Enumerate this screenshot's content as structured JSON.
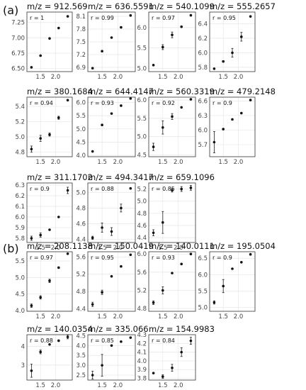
{
  "panel_labels": [
    "(a)",
    "(b)"
  ],
  "chart_data": [
    {
      "type": "scatter",
      "panel": "(a)",
      "title": "m/z = 912.569",
      "r_label": "r = 1",
      "x": [
        1.2,
        1.5,
        1.8,
        2.1,
        2.4
      ],
      "y": [
        6.52,
        6.71,
        6.99,
        7.16,
        7.35
      ],
      "err": [
        0,
        0,
        0,
        0,
        0
      ],
      "xticks": [
        1.5,
        2.0
      ],
      "yticks": [
        6.5,
        6.75,
        7.0,
        7.25
      ],
      "xlim": [
        1.05,
        2.55
      ],
      "ylim": [
        6.45,
        7.42
      ]
    },
    {
      "type": "scatter",
      "panel": "(a)",
      "title": "m/z = 636.5591",
      "r_label": "r = 0.99",
      "x": [
        1.2,
        1.5,
        1.8,
        2.1,
        2.4
      ],
      "y": [
        6.88,
        7.28,
        7.6,
        7.84,
        8.12
      ],
      "err": [
        0,
        0,
        0,
        0,
        0
      ],
      "xticks": [
        1.5,
        2.0
      ],
      "yticks": [
        6.9,
        7.2,
        7.5,
        7.8,
        8.1
      ],
      "xlim": [
        1.05,
        2.55
      ],
      "ylim": [
        6.8,
        8.2
      ]
    },
    {
      "type": "scatter",
      "panel": "(a)",
      "title": "m/z = 540.1099",
      "r_label": "r = 0.97",
      "x": [
        1.2,
        1.5,
        1.8,
        2.1,
        2.4
      ],
      "y": [
        5.08,
        5.52,
        5.82,
        6.02,
        6.3
      ],
      "err": [
        0,
        0.06,
        0.07,
        0,
        0
      ],
      "xticks": [
        1.5,
        2.0
      ],
      "yticks": [
        5.0,
        5.5,
        6.0
      ],
      "xlim": [
        1.05,
        2.55
      ],
      "ylim": [
        4.92,
        6.38
      ]
    },
    {
      "type": "scatter",
      "panel": "(a)",
      "title": "m/z = 555.2657",
      "r_label": "r = 0.95",
      "x": [
        1.2,
        1.5,
        1.8,
        2.1,
        2.4
      ],
      "y": [
        5.78,
        5.88,
        6.0,
        6.22,
        6.5
      ],
      "err": [
        0,
        0.01,
        0.06,
        0.06,
        0
      ],
      "xticks": [
        1.5,
        2.0
      ],
      "yticks": [
        5.8,
        6.0,
        6.2,
        6.4
      ],
      "xlim": [
        1.05,
        2.55
      ],
      "ylim": [
        5.74,
        6.56
      ]
    },
    {
      "type": "scatter",
      "panel": "(a)",
      "title": "m/z = 380.1684",
      "r_label": "r = 0.94",
      "x": [
        1.2,
        1.5,
        1.8,
        2.1,
        2.4
      ],
      "y": [
        4.84,
        4.98,
        5.03,
        5.25,
        5.48
      ],
      "err": [
        0.04,
        0.04,
        0.02,
        0.02,
        0
      ],
      "xticks": [
        1.5,
        2.0
      ],
      "yticks": [
        4.8,
        5.0,
        5.2,
        5.4
      ],
      "xlim": [
        1.05,
        2.55
      ],
      "ylim": [
        4.74,
        5.52
      ]
    },
    {
      "type": "scatter",
      "panel": "(a)",
      "title": "m/z = 644.4147",
      "r_label": "r = 0.93",
      "x": [
        1.2,
        1.5,
        1.8,
        2.1,
        2.4
      ],
      "y": [
        4.15,
        5.15,
        5.58,
        5.88,
        6.15
      ],
      "err": [
        0,
        0,
        0,
        0,
        0
      ],
      "xticks": [
        1.5,
        2.0
      ],
      "yticks": [
        4.0,
        4.5,
        5.0,
        5.5,
        6.0
      ],
      "xlim": [
        1.05,
        2.55
      ],
      "ylim": [
        3.95,
        6.2
      ]
    },
    {
      "type": "scatter",
      "panel": "(a)",
      "title": "m/z = 560.3319",
      "r_label": "r = 0.92",
      "x": [
        1.2,
        1.5,
        1.8,
        2.1,
        2.4
      ],
      "y": [
        4.72,
        5.25,
        5.55,
        5.8,
        6.02
      ],
      "err": [
        0.1,
        0.18,
        0.08,
        0,
        0
      ],
      "xticks": [
        1.5,
        2.0
      ],
      "yticks": [
        4.5,
        5.0,
        5.5,
        6.0
      ],
      "xlim": [
        1.05,
        2.55
      ],
      "ylim": [
        4.45,
        6.08
      ]
    },
    {
      "type": "scatter",
      "panel": "(a)",
      "title": "m/z = 479.2148",
      "r_label": "r = 0.9",
      "x": [
        1.2,
        1.5,
        1.8,
        2.1,
        2.4
      ],
      "y": [
        5.75,
        6.02,
        6.22,
        6.35,
        6.62
      ],
      "err": [
        0.22,
        0,
        0,
        0,
        0
      ],
      "xticks": [
        1.5,
        2.0
      ],
      "yticks": [
        5.7,
        6.0,
        6.3,
        6.6
      ],
      "xlim": [
        1.05,
        2.55
      ],
      "ylim": [
        5.45,
        6.68
      ]
    },
    {
      "type": "scatter",
      "panel": "(a)",
      "title": "m/z = 311.1702",
      "r_label": "r = 0.9",
      "x": [
        1.2,
        1.5,
        1.8,
        2.1,
        2.4
      ],
      "y": [
        5.8,
        5.83,
        5.88,
        6.0,
        6.25
      ],
      "err": [
        0.02,
        0.02,
        0,
        0,
        0.03
      ],
      "xticks": [
        1.5,
        2.0
      ],
      "yticks": [
        5.8,
        5.9,
        6.0,
        6.1,
        6.2,
        6.3
      ],
      "xlim": [
        1.05,
        2.55
      ],
      "ylim": [
        5.76,
        6.32
      ]
    },
    {
      "type": "scatter",
      "panel": "(a)",
      "title": "m/z = 494.3417",
      "r_label": "r = 0.88",
      "x": [
        1.2,
        1.5,
        1.8,
        2.1,
        2.4
      ],
      "y": [
        4.42,
        4.55,
        4.5,
        4.8,
        5.05
      ],
      "err": [
        0.02,
        0.06,
        0.05,
        0.05,
        0
      ],
      "xticks": [
        1.5,
        2.0
      ],
      "yticks": [
        4.4,
        4.6,
        4.8,
        5.0
      ],
      "xlim": [
        1.05,
        2.55
      ],
      "ylim": [
        4.36,
        5.12
      ]
    },
    {
      "type": "scatter",
      "panel": "(a)",
      "title": "m/z = 659.1096",
      "r_label": "r = 0.85",
      "x": [
        1.2,
        1.5,
        1.8,
        2.1,
        2.4
      ],
      "y": [
        4.48,
        4.65,
        5.18,
        5.2,
        5.22
      ],
      "err": [
        0.05,
        0.18,
        0.03,
        0.04,
        0.04
      ],
      "xticks": [
        1.5,
        2.0
      ],
      "yticks": [
        4.4,
        4.6,
        4.8,
        5.0,
        5.2
      ],
      "xlim": [
        1.05,
        2.55
      ],
      "ylim": [
        4.32,
        5.3
      ]
    },
    {
      "type": "scatter",
      "panel": "(b)",
      "title": "m/z = 208.1138",
      "r_label": "r = 0.97",
      "x": [
        1.2,
        1.5,
        1.8,
        2.1,
        2.4
      ],
      "y": [
        4.15,
        4.4,
        4.9,
        5.3,
        5.72
      ],
      "err": [
        0.05,
        0.05,
        0.05,
        0,
        0
      ],
      "xticks": [
        1.5,
        2.0
      ],
      "yticks": [
        4.0,
        4.5,
        5.0,
        5.5
      ],
      "xlim": [
        1.05,
        2.55
      ],
      "ylim": [
        3.98,
        5.78
      ]
    },
    {
      "type": "scatter",
      "panel": "(b)",
      "title": "m/z = 150.0419",
      "r_label": "r = 0.95",
      "x": [
        1.2,
        1.5,
        1.8,
        2.1,
        2.4
      ],
      "y": [
        4.5,
        4.78,
        5.15,
        5.38,
        5.65
      ],
      "err": [
        0.05,
        0.05,
        0,
        0,
        0
      ],
      "xticks": [
        1.5,
        2.0
      ],
      "yticks": [
        4.4,
        4.8,
        5.2,
        5.6
      ],
      "xlim": [
        1.05,
        2.55
      ],
      "ylim": [
        4.34,
        5.72
      ]
    },
    {
      "type": "scatter",
      "panel": "(b)",
      "title": "m/z = 140.0111",
      "r_label": "r = 0.93",
      "x": [
        1.2,
        1.5,
        1.8,
        2.1,
        2.4
      ],
      "y": [
        4.93,
        5.2,
        5.58,
        5.78,
        6.0
      ],
      "err": [
        0.04,
        0.08,
        0,
        0,
        0
      ],
      "xticks": [
        1.5,
        2.0
      ],
      "yticks": [
        4.8,
        5.2,
        5.6,
        6.0
      ],
      "xlim": [
        1.05,
        2.55
      ],
      "ylim": [
        4.74,
        6.05
      ]
    },
    {
      "type": "scatter",
      "panel": "(b)",
      "title": "m/z = 195.0504",
      "r_label": "r = 0.9",
      "x": [
        1.2,
        1.5,
        1.8,
        2.1,
        2.4
      ],
      "y": [
        5.15,
        5.65,
        6.18,
        6.38,
        6.62
      ],
      "err": [
        0.05,
        0.2,
        0,
        0,
        0
      ],
      "xticks": [
        1.5,
        2.0
      ],
      "yticks": [
        5.0,
        5.5,
        6.0,
        6.5
      ],
      "xlim": [
        1.05,
        2.55
      ],
      "ylim": [
        4.88,
        6.7
      ]
    },
    {
      "type": "scatter",
      "panel": "(b)",
      "title": "m/z = 140.0354",
      "r_label": "r = 0.88",
      "x": [
        1.2,
        1.5,
        1.8,
        2.1,
        2.4
      ],
      "y": [
        2.7,
        3.7,
        4.1,
        4.3,
        4.5
      ],
      "err": [
        0.35,
        0.1,
        0,
        0,
        0.1
      ],
      "xticks": [
        1.5,
        2.0
      ],
      "yticks": [
        3,
        4
      ],
      "xlim": [
        1.05,
        2.55
      ],
      "ylim": [
        2.2,
        4.62
      ]
    },
    {
      "type": "scatter",
      "panel": "(b)",
      "title": "m/z = 335.066",
      "r_label": "r = 0.85",
      "x": [
        1.2,
        1.5,
        1.8,
        2.1,
        2.4
      ],
      "y": [
        2.5,
        3.0,
        4.0,
        4.2,
        4.4
      ],
      "err": [
        0.2,
        0.55,
        0,
        0,
        0
      ],
      "xticks": [
        1.5,
        2.0
      ],
      "yticks": [
        2.5,
        3.0,
        3.5,
        4.0,
        4.5
      ],
      "xlim": [
        1.05,
        2.55
      ],
      "ylim": [
        2.25,
        4.55
      ]
    },
    {
      "type": "scatter",
      "panel": "(b)",
      "title": "m/z = 154.9983",
      "r_label": "r = 0.84",
      "x": [
        1.2,
        1.5,
        1.8,
        2.1,
        2.4
      ],
      "y": [
        3.86,
        3.82,
        3.92,
        4.1,
        4.23
      ],
      "err": [
        0,
        0.02,
        0.04,
        0.05,
        0.04
      ],
      "xticks": [
        1.5,
        2.0
      ],
      "yticks": [
        3.8,
        3.9,
        4.0,
        4.1,
        4.2,
        4.3
      ],
      "xlim": [
        1.05,
        2.55
      ],
      "ylim": [
        3.78,
        4.3
      ]
    }
  ]
}
